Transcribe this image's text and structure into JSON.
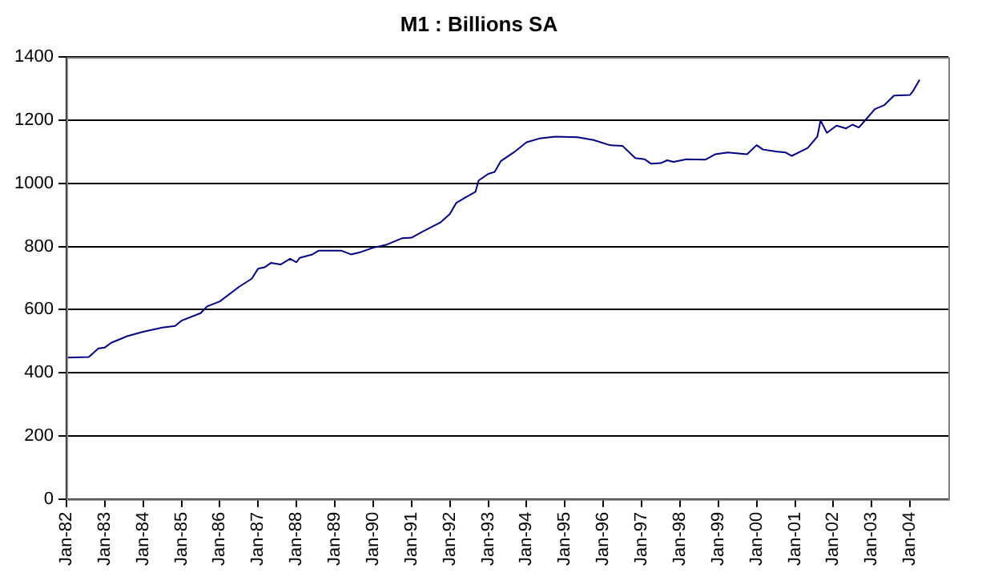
{
  "chart_data": {
    "type": "line",
    "title": "M1 : Billions SA",
    "x": [
      "1982-01",
      "1982-08",
      "1982-11",
      "1983-01",
      "1983-03",
      "1983-08",
      "1984-01",
      "1984-07",
      "1984-11",
      "1985-01",
      "1985-07",
      "1985-09",
      "1986-01",
      "1986-07",
      "1986-11",
      "1987-01",
      "1987-03",
      "1987-05",
      "1987-08",
      "1987-11",
      "1988-01",
      "1988-02",
      "1988-06",
      "1988-08",
      "1989-03",
      "1989-06",
      "1989-09",
      "1990-01",
      "1990-05",
      "1990-10",
      "1991-01",
      "1991-05",
      "1991-10",
      "1992-01",
      "1992-03",
      "1992-06",
      "1992-09",
      "1992-10",
      "1993-01",
      "1993-03",
      "1993-05",
      "1993-09",
      "1994-01",
      "1994-05",
      "1994-10",
      "1995-05",
      "1995-10",
      "1996-03",
      "1996-07",
      "1996-11",
      "1997-02",
      "1997-04",
      "1997-07",
      "1997-09",
      "1997-11",
      "1998-03",
      "1998-09",
      "1998-12",
      "1999-04",
      "1999-10",
      "2000-01",
      "2000-03",
      "2000-07",
      "2000-10",
      "2000-12",
      "2001-05",
      "2001-08",
      "2001-09",
      "2001-11",
      "2002-02",
      "2002-05",
      "2002-07",
      "2002-09",
      "2002-11",
      "2003-02",
      "2003-05",
      "2003-08",
      "2004-01",
      "2004-02",
      "2004-04"
    ],
    "series": [
      {
        "color": "#000080",
        "values": [
          448,
          450,
          477,
          480,
          495,
          516,
          530,
          543,
          548,
          565,
          589,
          610,
          626,
          672,
          698,
          730,
          734,
          748,
          743,
          761,
          750,
          764,
          775,
          787,
          787,
          775,
          782,
          796,
          805,
          826,
          828,
          850,
          876,
          903,
          938,
          956,
          973,
          1009,
          1030,
          1036,
          1071,
          1098,
          1130,
          1142,
          1148,
          1146,
          1137,
          1121,
          1119,
          1080,
          1076,
          1062,
          1064,
          1073,
          1068,
          1076,
          1075,
          1092,
          1098,
          1092,
          1121,
          1107,
          1101,
          1098,
          1087,
          1112,
          1148,
          1199,
          1160,
          1183,
          1174,
          1186,
          1177,
          1200,
          1235,
          1248,
          1278,
          1280,
          1293,
          1328
        ]
      }
    ],
    "xlim": [
      "1982-01",
      "2005-01"
    ],
    "xticks": [
      {
        "value": "1982-01",
        "label": "Jan-82"
      },
      {
        "value": "1983-01",
        "label": "Jan-83"
      },
      {
        "value": "1984-01",
        "label": "Jan-84"
      },
      {
        "value": "1985-01",
        "label": "Jan-85"
      },
      {
        "value": "1986-01",
        "label": "Jan-86"
      },
      {
        "value": "1987-01",
        "label": "Jan-87"
      },
      {
        "value": "1988-01",
        "label": "Jan-88"
      },
      {
        "value": "1989-01",
        "label": "Jan-89"
      },
      {
        "value": "1990-01",
        "label": "Jan-90"
      },
      {
        "value": "1991-01",
        "label": "Jan-91"
      },
      {
        "value": "1992-01",
        "label": "Jan-92"
      },
      {
        "value": "1993-01",
        "label": "Jan-93"
      },
      {
        "value": "1994-01",
        "label": "Jan-94"
      },
      {
        "value": "1995-01",
        "label": "Jan-95"
      },
      {
        "value": "1996-01",
        "label": "Jan-96"
      },
      {
        "value": "1997-01",
        "label": "Jan-97"
      },
      {
        "value": "1998-01",
        "label": "Jan-98"
      },
      {
        "value": "1999-01",
        "label": "Jan-99"
      },
      {
        "value": "2000-01",
        "label": "Jan-00"
      },
      {
        "value": "2001-01",
        "label": "Jan-01"
      },
      {
        "value": "2002-01",
        "label": "Jan-02"
      },
      {
        "value": "2003-01",
        "label": "Jan-03"
      },
      {
        "value": "2004-01",
        "label": "Jan-04"
      }
    ],
    "ylim": [
      0,
      1400
    ],
    "yticks": [
      0,
      200,
      400,
      600,
      800,
      1000,
      1200,
      1400
    ],
    "grid": "y",
    "legend": false,
    "marker": "none",
    "line_style": "solid"
  }
}
